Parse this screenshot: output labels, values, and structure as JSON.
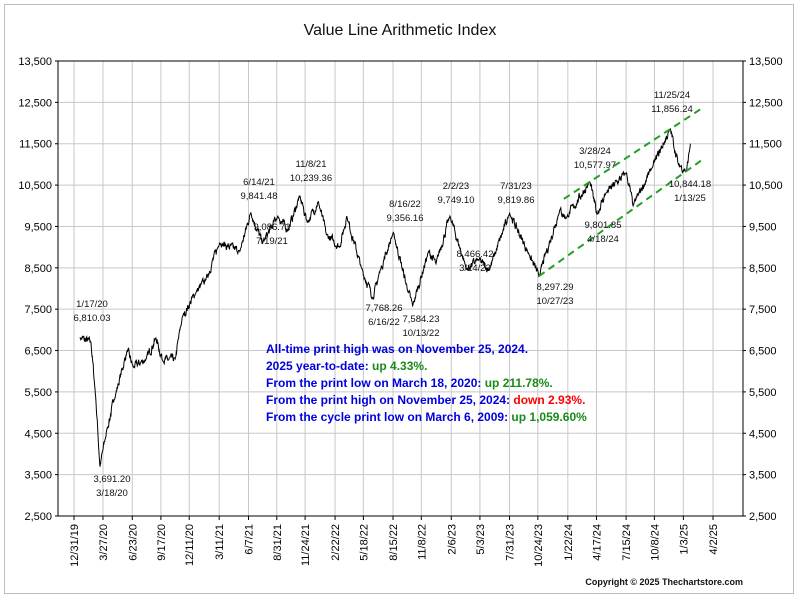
{
  "chart_data": {
    "type": "line",
    "title": "Value Line Arithmetic Index",
    "ylim": [
      2500,
      13500
    ],
    "y_ticks": [
      "2,500",
      "3,500",
      "4,500",
      "5,500",
      "6,500",
      "7,500",
      "8,500",
      "9,500",
      "10,500",
      "11,500",
      "12,500",
      "13,500"
    ],
    "x_ticks": [
      "12/31/19",
      "3/27/20",
      "6/23/20",
      "9/17/20",
      "12/11/20",
      "3/11/21",
      "6/7/21",
      "8/31/21",
      "11/24/21",
      "2/22/22",
      "5/18/22",
      "8/15/22",
      "11/8/22",
      "2/6/23",
      "5/3/23",
      "7/31/23",
      "10/24/23",
      "1/22/24",
      "4/17/24",
      "7/15/24",
      "10/8/24",
      "1/3/25",
      "4/2/25"
    ],
    "grid": true,
    "series": [
      {
        "values": [
          [
            "2020-01-17",
            6810.03
          ],
          [
            "2020-02-20",
            6700
          ],
          [
            "2020-03-05",
            5400
          ],
          [
            "2020-03-18",
            3691.2
          ],
          [
            "2020-04-08",
            4600
          ],
          [
            "2020-04-29",
            5300
          ],
          [
            "2020-06-08",
            6500
          ],
          [
            "2020-06-26",
            6100
          ],
          [
            "2020-08-04",
            6300
          ],
          [
            "2020-09-02",
            6800
          ],
          [
            "2020-09-23",
            6250
          ],
          [
            "2020-10-30",
            6300
          ],
          [
            "2020-11-20",
            7300
          ],
          [
            "2020-12-31",
            7900
          ],
          [
            "2021-01-29",
            8200
          ],
          [
            "2021-03-12",
            9100
          ],
          [
            "2021-05-12",
            8900
          ],
          [
            "2021-06-14",
            9841.48
          ],
          [
            "2021-07-19",
            9086.71
          ],
          [
            "2021-09-03",
            9750
          ],
          [
            "2021-10-04",
            9400
          ],
          [
            "2021-11-08",
            10239.36
          ],
          [
            "2021-12-01",
            9600
          ],
          [
            "2022-01-03",
            10100
          ],
          [
            "2022-01-27",
            9300
          ],
          [
            "2022-03-08",
            9000
          ],
          [
            "2022-03-29",
            9750
          ],
          [
            "2022-05-12",
            8500
          ],
          [
            "2022-06-16",
            7768.26
          ],
          [
            "2022-07-08",
            8450
          ],
          [
            "2022-08-16",
            9356.16
          ],
          [
            "2022-09-30",
            7900
          ],
          [
            "2022-10-13",
            7584.23
          ],
          [
            "2022-11-30",
            8900
          ],
          [
            "2022-12-22",
            8600
          ],
          [
            "2023-02-02",
            9749.1
          ],
          [
            "2023-03-24",
            8466.42
          ],
          [
            "2023-04-28",
            8700
          ],
          [
            "2023-05-31",
            8450
          ],
          [
            "2023-07-31",
            9819.86
          ],
          [
            "2023-09-29",
            8800
          ],
          [
            "2023-10-27",
            8297.29
          ],
          [
            "2023-12-29",
            9900
          ],
          [
            "2024-01-17",
            9700
          ],
          [
            "2024-03-28",
            10577.97
          ],
          [
            "2024-04-18",
            9801.85
          ],
          [
            "2024-05-15",
            10300
          ],
          [
            "2024-07-16",
            10800
          ],
          [
            "2024-08-05",
            10000
          ],
          [
            "2024-09-30",
            10900
          ],
          [
            "2024-11-25",
            11856.24
          ],
          [
            "2024-12-19",
            11000
          ],
          [
            "2025-01-13",
            10844.18
          ],
          [
            "2025-01-24",
            11500
          ]
        ]
      }
    ],
    "annotations": [
      {
        "top": "1/17/20",
        "bottom": "6,810.03"
      },
      {
        "top": "3,691.20",
        "bottom": "3/18/20"
      },
      {
        "top": "6/14/21",
        "bottom": "9,841.48"
      },
      {
        "top": "9,086.71",
        "bottom": "7/19/21"
      },
      {
        "top": "11/8/21",
        "bottom": "10,239.36"
      },
      {
        "top": "7,768.26",
        "bottom": "6/16/22"
      },
      {
        "top": "8/16/22",
        "bottom": "9,356.16"
      },
      {
        "top": "7,584.23",
        "bottom": "10/13/22"
      },
      {
        "top": "2/2/23",
        "bottom": "9,749.10"
      },
      {
        "top": "8,466.42",
        "bottom": "3/24/23"
      },
      {
        "top": "7/31/23",
        "bottom": "9,819.86"
      },
      {
        "top": "8,297.29",
        "bottom": "10/27/23"
      },
      {
        "top": "3/28/24",
        "bottom": "10,577.97"
      },
      {
        "top": "9,801.85",
        "bottom": "4/18/24"
      },
      {
        "top": "11/25/24",
        "bottom": "11,856.24"
      },
      {
        "top": "10,844.18",
        "bottom": "1/13/25"
      }
    ],
    "notes": [
      {
        "text": "All-time print high was on November 25, 2024.",
        "highlight": ""
      },
      {
        "text": "2025 year-to-date:  ",
        "highlight": "up 4.33%."
      },
      {
        "text": "From the print low on March 18, 2020:  ",
        "highlight": "up 211.78%."
      },
      {
        "text": "From the print high on November 25, 2024:  ",
        "highlight": "down 2.93%."
      },
      {
        "text": "From the cycle print low on March 6, 2009:  ",
        "highlight": "up 1,059.60%"
      }
    ],
    "colors": {
      "line": "#000000",
      "channel": "#22a022",
      "note_text": "#0000dd",
      "up": "#1a8a1a",
      "down": "#ff0000"
    },
    "copyright": "Copyright © 2025 Thechartstore.com"
  }
}
